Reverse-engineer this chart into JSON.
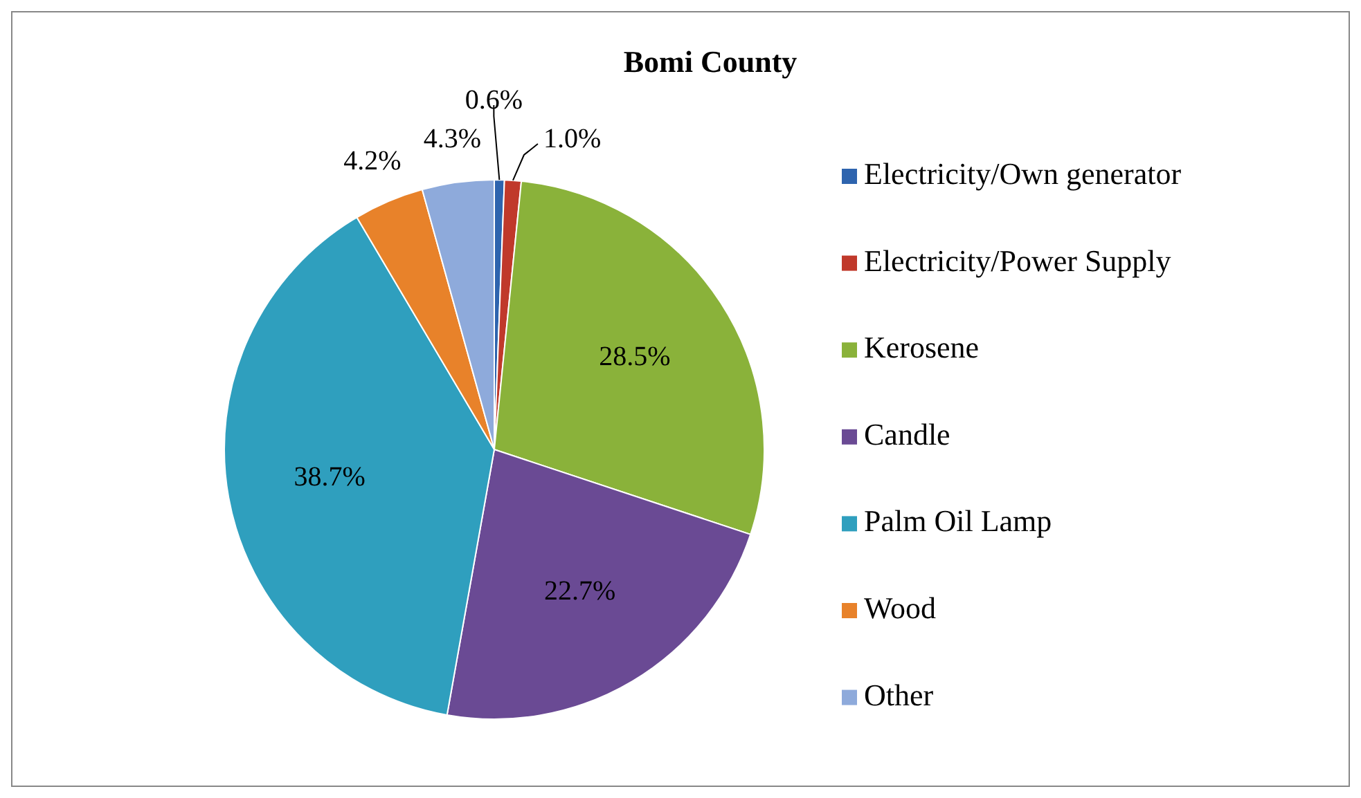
{
  "chart_data": {
    "type": "pie",
    "title": "Bomi County",
    "categories": [
      "Electricity/Own generator",
      "Electricity/Power Supply",
      "Kerosene",
      "Candle",
      "Palm Oil Lamp",
      "Wood",
      "Other"
    ],
    "values": [
      0.6,
      1.0,
      28.5,
      22.7,
      38.7,
      4.2,
      4.3
    ],
    "colors": [
      "#2e64ae",
      "#c0392b",
      "#8ab23a",
      "#6a4a94",
      "#2f9fbe",
      "#e8822a",
      "#8eaadb"
    ],
    "value_labels": [
      "0.6%",
      "1.0%",
      "28.5%",
      "22.7%",
      "38.7%",
      "4.2%",
      "4.3%"
    ],
    "legend": "right"
  }
}
